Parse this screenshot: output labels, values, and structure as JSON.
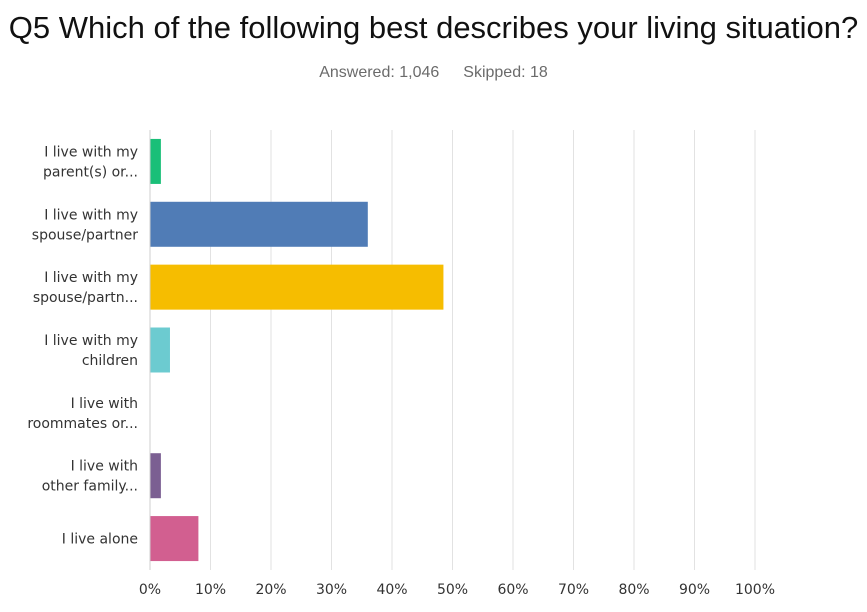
{
  "chart_data": {
    "type": "bar",
    "orientation": "horizontal",
    "title": "Q5 Which of the following best describes your living situation?",
    "answered_label": "Answered: 1,046",
    "skipped_label": "Skipped: 18",
    "categories": [
      [
        "I live with my",
        "parent(s) or..."
      ],
      [
        "I live with my",
        "spouse/partner"
      ],
      [
        "I live with my",
        "spouse/partn..."
      ],
      [
        "I live with my",
        "children"
      ],
      [
        "I live with",
        "roommates or..."
      ],
      [
        "I live with",
        "other family..."
      ],
      [
        "I live alone"
      ]
    ],
    "values": [
      1.8,
      36.0,
      48.5,
      3.3,
      0.0,
      1.8,
      8.0
    ],
    "colors": [
      "#1abf78",
      "#507cb6",
      "#f6bd00",
      "#6ccbd0",
      "#a0a0a0",
      "#7b5f92",
      "#d25f90"
    ],
    "xlim": [
      0,
      100
    ],
    "xticks": [
      0,
      10,
      20,
      30,
      40,
      50,
      60,
      70,
      80,
      90,
      100
    ],
    "tick_suffix": "%",
    "grid": true
  }
}
